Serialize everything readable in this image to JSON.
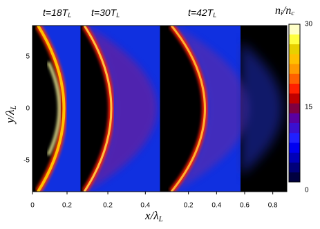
{
  "chart_data": {
    "type": "heatmap",
    "ylim": [
      -8,
      8
    ],
    "yticks": [
      -5,
      0,
      5
    ],
    "ylabel": [
      "y/λ",
      "L"
    ],
    "xlabel": [
      "x/λ",
      "L"
    ],
    "panels": [
      {
        "title": [
          "t=18T",
          "L"
        ],
        "xlim": [
          0,
          0.28
        ],
        "xticks": [
          0,
          0.2
        ]
      },
      {
        "title": [
          "t=30T",
          "L"
        ],
        "xlim": [
          0.056,
          0.48
        ],
        "xticks": [
          0.2,
          0.4
        ]
      },
      {
        "title": [
          "t=42T",
          "L"
        ],
        "xlim": [
          0,
          0.9
        ],
        "xticks": [
          0.2,
          0.4,
          0.6,
          0.8
        ]
      }
    ],
    "colorbar": {
      "label": [
        "n",
        "i",
        "/n",
        "c"
      ],
      "clim": [
        0,
        30
      ],
      "ticks": [
        0,
        15,
        30
      ],
      "colors": [
        "#000040",
        "#00007a",
        "#0000b8",
        "#0000f0",
        "#2020ff",
        "#3a10d0",
        "#5a00a0",
        "#800040",
        "#c00000",
        "#ff2000",
        "#ff6000",
        "#ff9a00",
        "#ffc000",
        "#e8d000",
        "#ffff40",
        "#ffffc8"
      ]
    }
  }
}
